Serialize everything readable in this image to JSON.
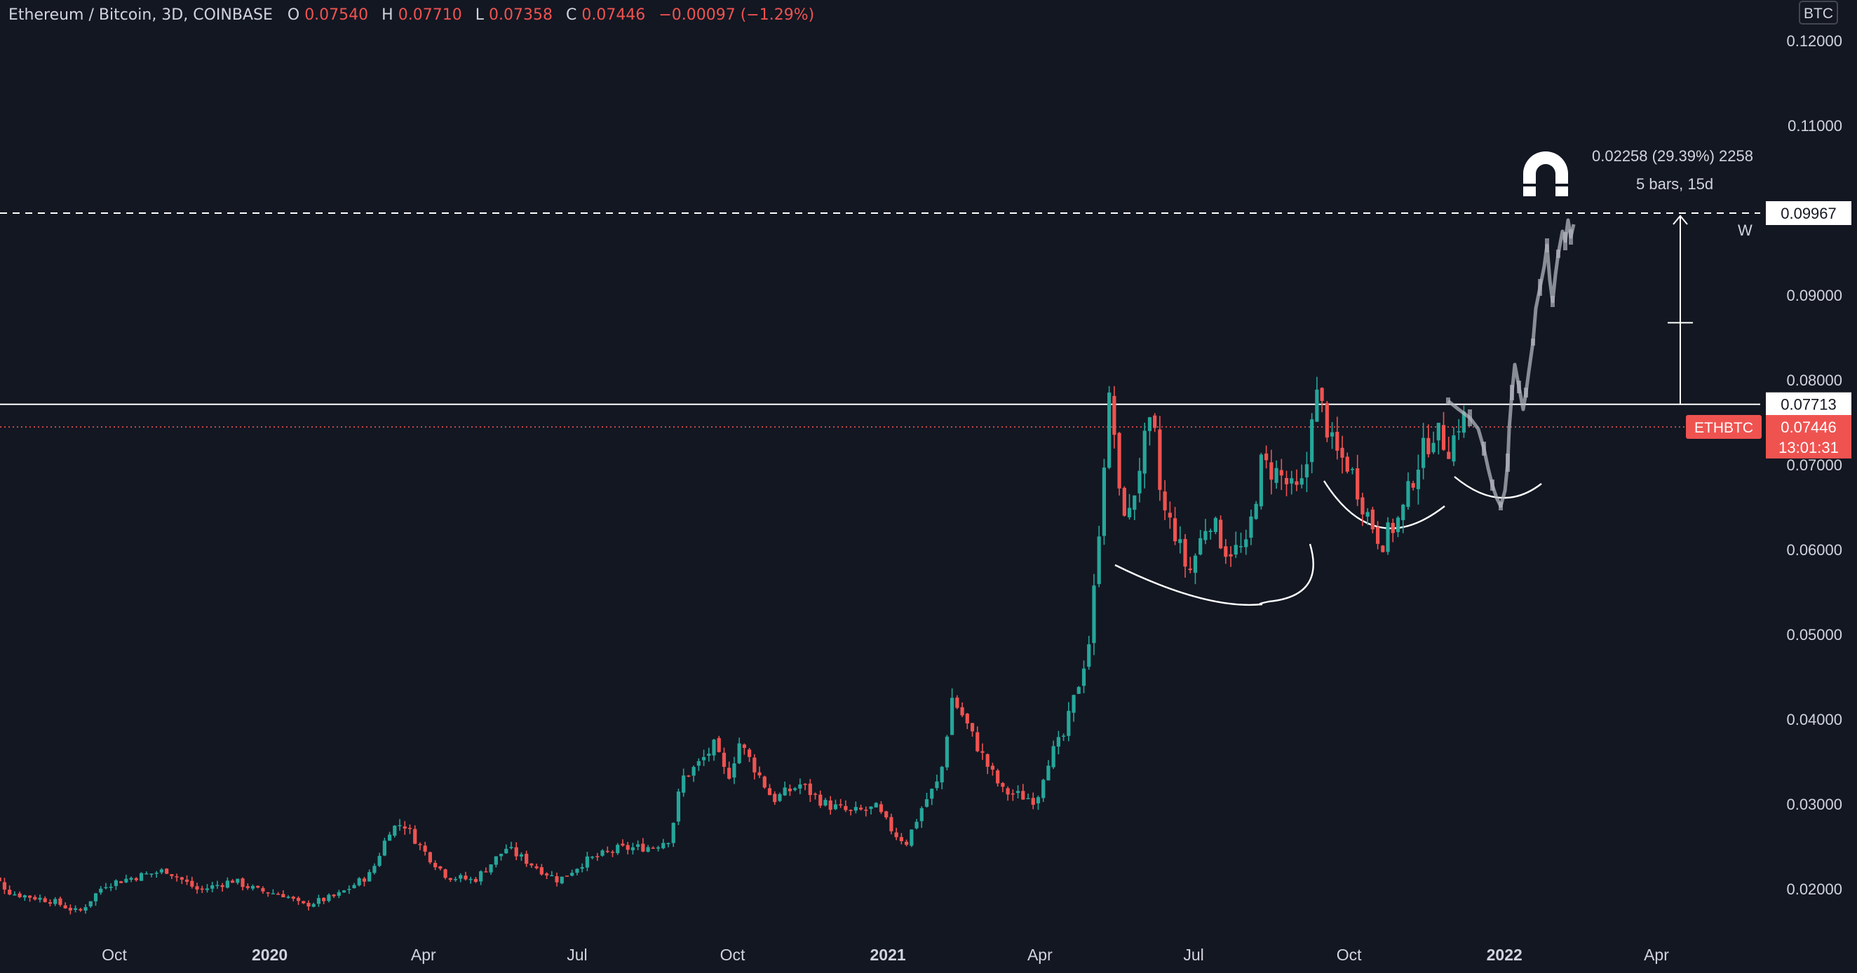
{
  "header": {
    "symbol": "Ethereum / Bitcoin, 3D, COINBASE",
    "o_label": "O",
    "o_value": "0.07540",
    "h_label": "H",
    "h_value": "0.07710",
    "l_label": "L",
    "l_value": "0.07358",
    "c_label": "C",
    "c_value": "0.07446",
    "change": "−0.00097 (−1.29%)"
  },
  "currency_badge": "BTC",
  "price_labels": {
    "level": "0.07713",
    "target": "0.09967",
    "symbol_tag": "ETHBTC",
    "last_price": "0.07446",
    "countdown": "13:01:31"
  },
  "measure": {
    "line1": "0.02258 (29.39%) 2258",
    "line2": "5 bars, 15d"
  },
  "w_label": "W",
  "colors": {
    "background": "#131722",
    "up": "#26a69a",
    "down": "#ef5350",
    "text": "#d1d4dc",
    "projection": "#b2b5be"
  },
  "icons": [
    "magnet-icon"
  ],
  "chart_data": {
    "type": "candlestick",
    "title": "Ethereum / Bitcoin, 3D, COINBASE",
    "ylabel": "BTC",
    "y_axis": {
      "ticks": [
        "0.12000",
        "0.11000",
        "0.09000",
        "0.08000",
        "0.07000",
        "0.06000",
        "0.05000",
        "0.04000",
        "0.03000",
        "0.02000"
      ],
      "ylim": [
        0.0135,
        0.1225
      ]
    },
    "x_axis": {
      "ticks": [
        {
          "label": "Oct",
          "bold": false,
          "date": "2019-10-01"
        },
        {
          "label": "2020",
          "bold": true,
          "date": "2020-01-01"
        },
        {
          "label": "Apr",
          "bold": false,
          "date": "2020-04-01"
        },
        {
          "label": "Jul",
          "bold": false,
          "date": "2020-07-01"
        },
        {
          "label": "Oct",
          "bold": false,
          "date": "2020-10-01"
        },
        {
          "label": "2021",
          "bold": true,
          "date": "2021-01-01"
        },
        {
          "label": "Apr",
          "bold": false,
          "date": "2021-04-01"
        },
        {
          "label": "Jul",
          "bold": false,
          "date": "2021-07-01"
        },
        {
          "label": "Oct",
          "bold": false,
          "date": "2021-10-01"
        },
        {
          "label": "2022",
          "bold": true,
          "date": "2022-01-01"
        },
        {
          "label": "Apr",
          "bold": false,
          "date": "2022-04-01"
        }
      ],
      "range": [
        "2019-07-13",
        "2022-05-14"
      ]
    },
    "grid": false,
    "horizontal_level": 0.07713,
    "target_level": 0.09967,
    "last_close": 0.07446,
    "anchors": [
      [
        "2019-07-15",
        0.0225
      ],
      [
        "2019-08-01",
        0.0195
      ],
      [
        "2019-08-25",
        0.0186
      ],
      [
        "2019-09-10",
        0.0172
      ],
      [
        "2019-09-25",
        0.0205
      ],
      [
        "2019-10-15",
        0.0215
      ],
      [
        "2019-11-01",
        0.0222
      ],
      [
        "2019-11-20",
        0.0198
      ],
      [
        "2019-12-10",
        0.021
      ],
      [
        "2019-12-25",
        0.0198
      ],
      [
        "2020-01-10",
        0.0193
      ],
      [
        "2020-01-20",
        0.018
      ],
      [
        "2020-02-10",
        0.0192
      ],
      [
        "2020-03-01",
        0.0218
      ],
      [
        "2020-03-12",
        0.027
      ],
      [
        "2020-03-20",
        0.0278
      ],
      [
        "2020-04-01",
        0.0245
      ],
      [
        "2020-04-15",
        0.0215
      ],
      [
        "2020-05-01",
        0.021
      ],
      [
        "2020-05-20",
        0.0248
      ],
      [
        "2020-06-05",
        0.0228
      ],
      [
        "2020-06-20",
        0.021
      ],
      [
        "2020-07-05",
        0.0232
      ],
      [
        "2020-07-25",
        0.0247
      ],
      [
        "2020-08-15",
        0.025
      ],
      [
        "2020-08-25",
        0.026
      ],
      [
        "2020-09-01",
        0.033
      ],
      [
        "2020-09-10",
        0.0345
      ],
      [
        "2020-09-20",
        0.0368
      ],
      [
        "2020-09-28",
        0.033
      ],
      [
        "2020-10-05",
        0.0372
      ],
      [
        "2020-10-15",
        0.034
      ],
      [
        "2020-10-25",
        0.0305
      ],
      [
        "2020-11-10",
        0.0323
      ],
      [
        "2020-11-25",
        0.03
      ],
      [
        "2020-12-10",
        0.029
      ],
      [
        "2020-12-25",
        0.0295
      ],
      [
        "2021-01-05",
        0.0265
      ],
      [
        "2021-01-12",
        0.0255
      ],
      [
        "2021-01-22",
        0.03
      ],
      [
        "2021-02-01",
        0.033
      ],
      [
        "2021-02-08",
        0.0425
      ],
      [
        "2021-02-14",
        0.0405
      ],
      [
        "2021-02-20",
        0.038
      ],
      [
        "2021-03-01",
        0.0345
      ],
      [
        "2021-03-10",
        0.0315
      ],
      [
        "2021-03-20",
        0.031
      ],
      [
        "2021-03-30",
        0.0305
      ],
      [
        "2021-04-05",
        0.035
      ],
      [
        "2021-04-15",
        0.038
      ],
      [
        "2021-04-25",
        0.045
      ],
      [
        "2021-05-01",
        0.05
      ],
      [
        "2021-05-05",
        0.06
      ],
      [
        "2021-05-10",
        0.0735
      ],
      [
        "2021-05-13",
        0.079
      ],
      [
        "2021-05-18",
        0.066
      ],
      [
        "2021-05-24",
        0.064
      ],
      [
        "2021-06-01",
        0.072
      ],
      [
        "2021-06-07",
        0.075
      ],
      [
        "2021-06-12",
        0.065
      ],
      [
        "2021-06-20",
        0.062
      ],
      [
        "2021-06-28",
        0.057
      ],
      [
        "2021-07-10",
        0.064
      ],
      [
        "2021-07-20",
        0.06
      ],
      [
        "2021-08-01",
        0.06
      ],
      [
        "2021-08-10",
        0.07
      ],
      [
        "2021-08-20",
        0.069
      ],
      [
        "2021-08-30",
        0.0665
      ],
      [
        "2021-09-05",
        0.068
      ],
      [
        "2021-09-10",
        0.079
      ],
      [
        "2021-09-16",
        0.076
      ],
      [
        "2021-09-22",
        0.0715
      ],
      [
        "2021-10-01",
        0.07
      ],
      [
        "2021-10-10",
        0.065
      ],
      [
        "2021-10-20",
        0.0608
      ],
      [
        "2021-11-01",
        0.064
      ],
      [
        "2021-11-10",
        0.07
      ],
      [
        "2021-11-20",
        0.074
      ],
      [
        "2021-11-30",
        0.072
      ],
      [
        "2021-12-05",
        0.075
      ],
      [
        "2021-12-08",
        0.0755
      ]
    ]
  }
}
